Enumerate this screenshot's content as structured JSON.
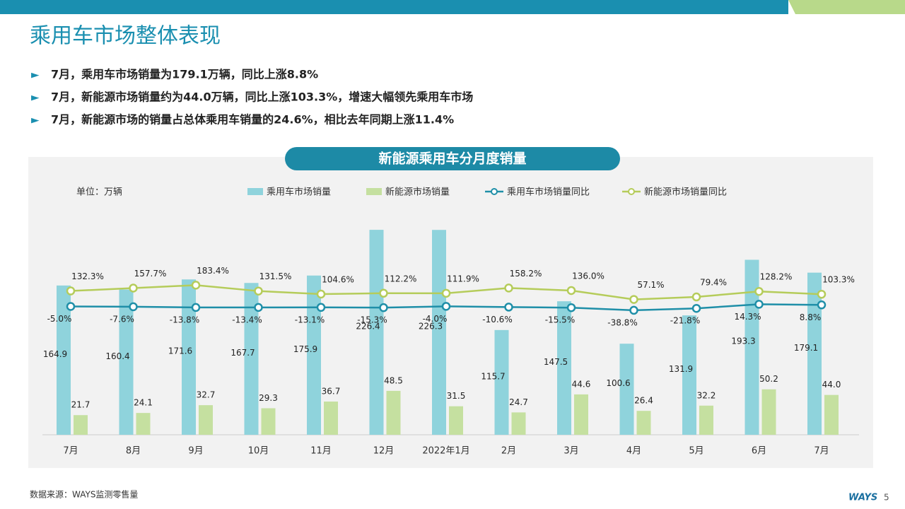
{
  "header": {
    "title": "乘用车市场整体表现",
    "bullets": [
      "7月，乘用车市场销量为179.1万辆，同比上涨8.8%",
      "7月，新能源市场销量约为44.0万辆，同比上涨103.3%，增速大幅领先乘用车市场",
      "7月，新能源市场的销量占总体乘用车销量的24.6%，相比去年同期上涨11.4%"
    ]
  },
  "chart_data": {
    "type": "bar",
    "title": "新能源乘用车分月度销量",
    "y_label": "单位：万辆",
    "categories": [
      "7月",
      "8月",
      "9月",
      "10月",
      "11月",
      "12月",
      "2022年1月",
      "2月",
      "3月",
      "4月",
      "5月",
      "6月",
      "7月"
    ],
    "ylim": [
      0,
      246
    ],
    "y2lim": [
      -1140,
      830
    ],
    "series": [
      {
        "name": "乘用车市场销量",
        "type": "bar",
        "color": "#8fd3dc",
        "values": [
          164.9,
          160.4,
          171.6,
          167.7,
          175.9,
          226.4,
          226.3,
          115.7,
          147.5,
          100.6,
          131.9,
          193.3,
          179.1
        ],
        "value_labels": [
          "164.9",
          "160.4",
          "171.6",
          "167.7",
          "175.9",
          "226.4",
          "226.3",
          "115.7",
          "147.5",
          "100.6",
          "131.9",
          "193.3",
          "179.1"
        ]
      },
      {
        "name": "新能源市场销量",
        "type": "bar",
        "color": "#c5e0a0",
        "values": [
          21.7,
          24.1,
          32.7,
          29.3,
          36.7,
          48.5,
          31.5,
          24.7,
          44.6,
          26.4,
          32.2,
          50.2,
          44.0
        ],
        "value_labels": [
          "21.7",
          "24.1",
          "32.7",
          "29.3",
          "36.7",
          "48.5",
          "31.5",
          "24.7",
          "44.6",
          "26.4",
          "32.2",
          "50.2",
          "44.0"
        ]
      },
      {
        "name": "乘用车市场销量同比",
        "type": "line",
        "axis": "y2",
        "color": "#1f8fa8",
        "values": [
          -5.0,
          -7.6,
          -13.8,
          -13.4,
          -13.1,
          -15.3,
          -4.0,
          -10.6,
          -15.5,
          -38.8,
          -21.8,
          14.3,
          8.8
        ],
        "value_labels": [
          "-5.0%",
          "-7.6%",
          "-13.8%",
          "-13.4%",
          "-13.1%",
          "-15.3%",
          "-4.0%",
          "-10.6%",
          "-15.5%",
          "-38.8%",
          "-21.8%",
          "14.3%",
          "8.8%"
        ]
      },
      {
        "name": "新能源市场销量同比",
        "type": "line",
        "axis": "y2",
        "color": "#b5cc5a",
        "values": [
          132.3,
          157.7,
          183.4,
          131.5,
          104.6,
          112.2,
          111.9,
          158.2,
          136.0,
          57.1,
          79.4,
          128.2,
          103.3
        ],
        "value_labels": [
          "132.3%",
          "157.7%",
          "183.4%",
          "131.5%",
          "104.6%",
          "112.2%",
          "111.9%",
          "158.2%",
          "136.0%",
          "57.1%",
          "79.4%",
          "128.2%",
          "103.3%"
        ]
      }
    ]
  },
  "footer": {
    "source": "数据来源：WAYS监测零售量",
    "logo": "WAYS",
    "page": "5"
  }
}
